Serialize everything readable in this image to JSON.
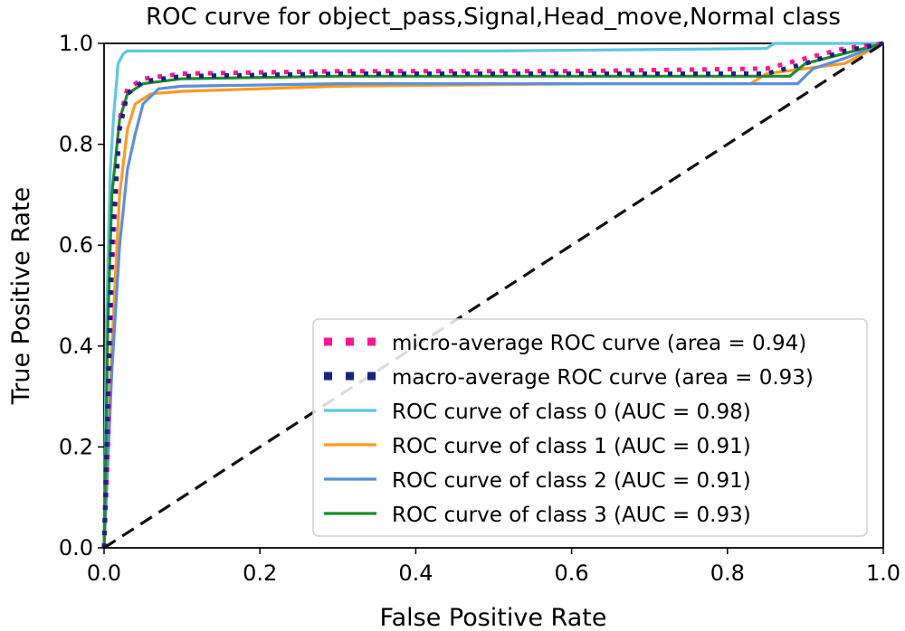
{
  "chart_data": {
    "type": "line",
    "title": "ROC curve for  object_pass,Signal,Head_move,Normal class",
    "xlabel": "False Positive Rate",
    "ylabel": "True Positive Rate",
    "xlim": [
      0.0,
      1.0
    ],
    "ylim": [
      0.0,
      1.0
    ],
    "xticks": [
      "0.0",
      "0.2",
      "0.4",
      "0.6",
      "0.8",
      "1.0"
    ],
    "yticks": [
      "0.0",
      "0.2",
      "0.4",
      "0.6",
      "0.8",
      "1.0"
    ],
    "grid": false,
    "legend_position": "bottom-right",
    "chance_line": {
      "x": [
        0,
        1
      ],
      "y": [
        0,
        1
      ],
      "style": "dashed",
      "color": "#111111"
    },
    "series": [
      {
        "name": "micro-average ROC curve (area = 0.94)",
        "color": "#ff1493",
        "style": "dotted",
        "x": [
          0,
          0.005,
          0.01,
          0.02,
          0.03,
          0.05,
          0.1,
          0.3,
          0.6,
          0.85,
          0.9,
          0.95,
          1.0
        ],
        "y": [
          0,
          0.2,
          0.55,
          0.85,
          0.91,
          0.93,
          0.94,
          0.945,
          0.945,
          0.95,
          0.97,
          0.99,
          1.0
        ]
      },
      {
        "name": "macro-average ROC curve (area = 0.93)",
        "color": "#1a237e",
        "style": "dotted",
        "x": [
          0,
          0.005,
          0.01,
          0.02,
          0.03,
          0.05,
          0.1,
          0.3,
          0.6,
          0.85,
          0.9,
          0.95,
          1.0
        ],
        "y": [
          0,
          0.3,
          0.6,
          0.83,
          0.9,
          0.925,
          0.935,
          0.94,
          0.94,
          0.94,
          0.96,
          0.985,
          1.0
        ]
      },
      {
        "name": "ROC curve of class 0 (AUC = 0.98)",
        "color": "#5bc8e0",
        "style": "solid",
        "x": [
          0,
          0.003,
          0.008,
          0.012,
          0.018,
          0.025,
          0.03,
          0.1,
          0.5,
          0.85,
          0.86,
          1.0
        ],
        "y": [
          0,
          0.45,
          0.75,
          0.85,
          0.96,
          0.98,
          0.985,
          0.985,
          0.985,
          0.99,
          1.0,
          1.0
        ]
      },
      {
        "name": "ROC curve of class 1 (AUC = 0.91)",
        "color": "#ff9a1f",
        "style": "solid",
        "x": [
          0,
          0.01,
          0.02,
          0.03,
          0.04,
          0.06,
          0.1,
          0.3,
          0.63,
          0.83,
          0.85,
          0.95,
          1.0
        ],
        "y": [
          0,
          0.4,
          0.7,
          0.83,
          0.88,
          0.9,
          0.905,
          0.915,
          0.92,
          0.92,
          0.94,
          0.96,
          1.0
        ]
      },
      {
        "name": "ROC curve of class 2 (AUC = 0.91)",
        "color": "#5b8fd9",
        "style": "solid",
        "x": [
          0,
          0.01,
          0.02,
          0.03,
          0.04,
          0.05,
          0.07,
          0.1,
          0.3,
          0.6,
          0.89,
          0.91,
          0.95,
          1.0
        ],
        "y": [
          0,
          0.35,
          0.6,
          0.75,
          0.82,
          0.88,
          0.91,
          0.915,
          0.92,
          0.92,
          0.92,
          0.95,
          0.97,
          1.0
        ]
      },
      {
        "name": "ROC curve of class 3 (AUC = 0.93)",
        "color": "#1f8a2e",
        "style": "solid",
        "x": [
          0,
          0.005,
          0.01,
          0.02,
          0.03,
          0.05,
          0.1,
          0.3,
          0.6,
          0.88,
          0.9,
          0.95,
          1.0
        ],
        "y": [
          0,
          0.45,
          0.7,
          0.85,
          0.9,
          0.92,
          0.93,
          0.935,
          0.935,
          0.935,
          0.96,
          0.98,
          1.0
        ]
      }
    ]
  }
}
